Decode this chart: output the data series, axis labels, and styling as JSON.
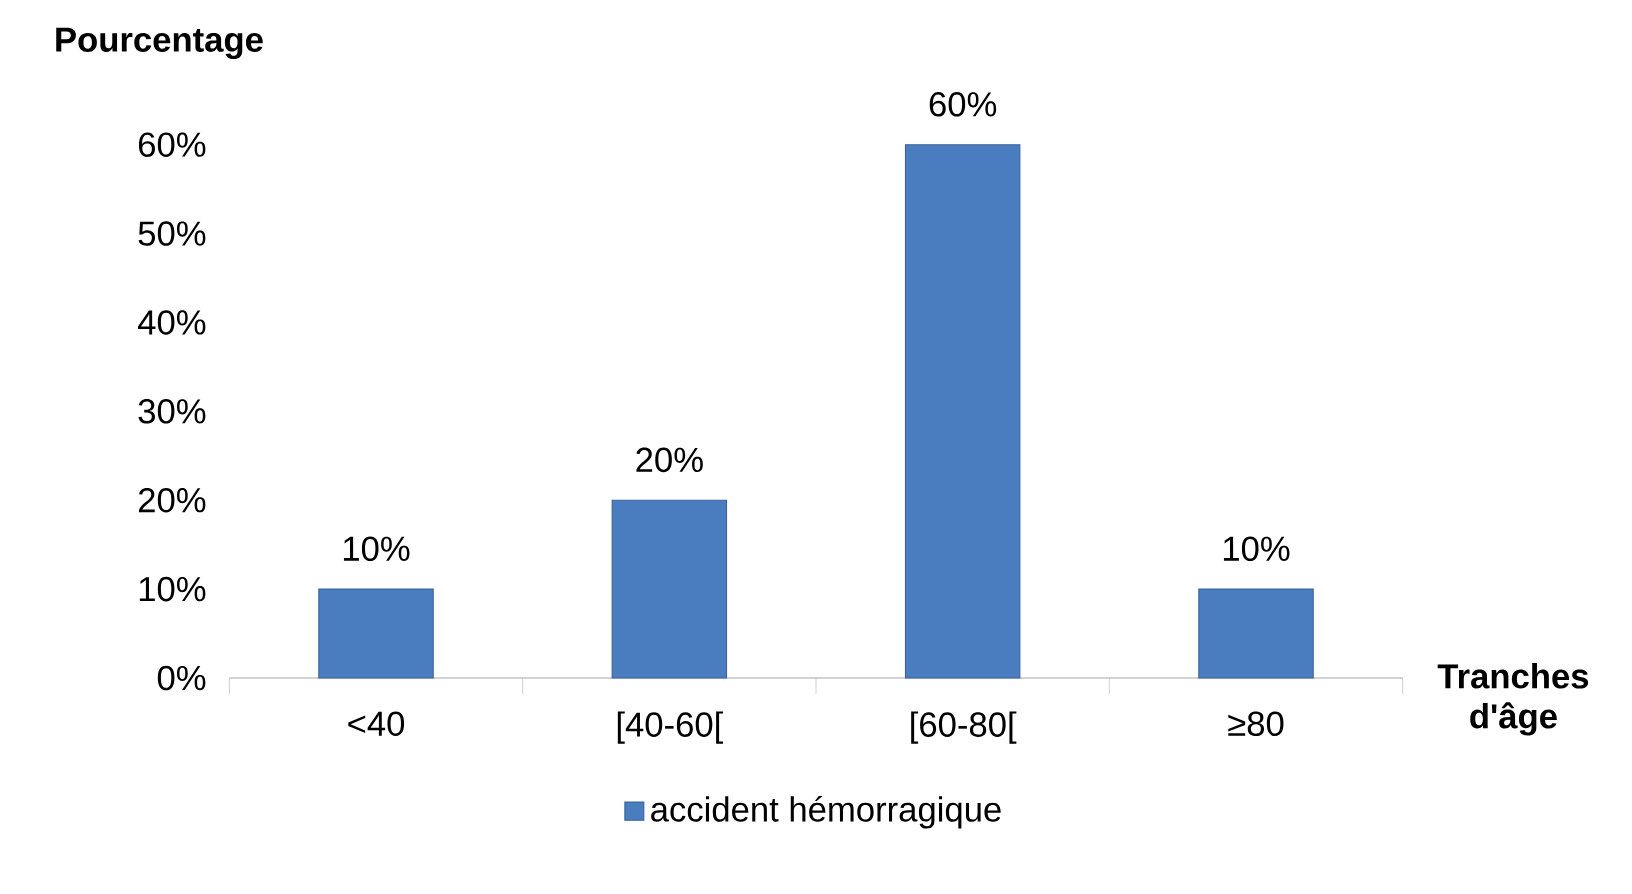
{
  "chart_data": {
    "type": "bar",
    "ylabel": "Pourcentage",
    "xlabel": "Tranches d'âge",
    "categories": [
      "<40",
      "[40-60[",
      "[60-80[",
      "≥80"
    ],
    "series": [
      {
        "name": "accident hémorragique",
        "color": "#4a7cc0",
        "values": [
          10,
          20,
          60,
          10
        ],
        "value_labels": [
          "10%",
          "20%",
          "60%",
          "10%"
        ]
      }
    ],
    "ylim": [
      0,
      60
    ],
    "yticks": [
      {
        "value": 0,
        "label": "0%"
      },
      {
        "value": 10,
        "label": "10%"
      },
      {
        "value": 20,
        "label": "20%"
      },
      {
        "value": 30,
        "label": "30%"
      },
      {
        "value": 40,
        "label": "40%"
      },
      {
        "value": 50,
        "label": "50%"
      },
      {
        "value": 60,
        "label": "60%"
      }
    ],
    "grid": false,
    "legend": "bottom"
  }
}
